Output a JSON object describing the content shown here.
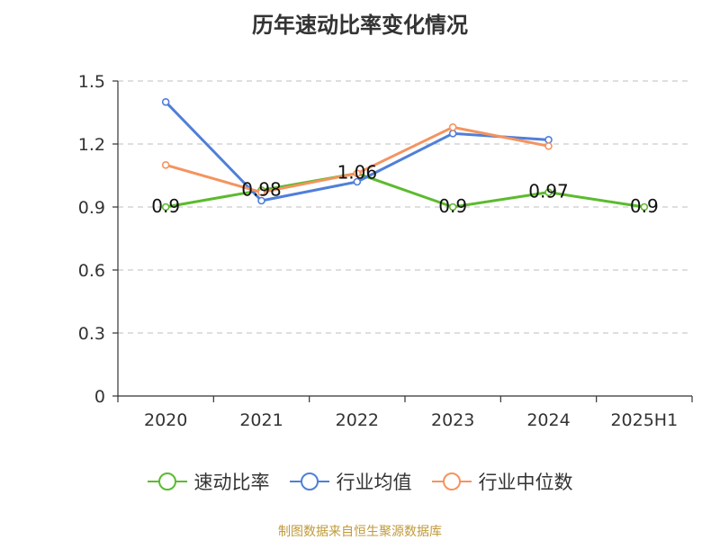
{
  "chart_data": {
    "type": "line",
    "title": "历年速动比率变化情况",
    "categories": [
      "2020",
      "2021",
      "2022",
      "2023",
      "2024",
      "2025H1"
    ],
    "ylim": [
      0,
      1.5
    ],
    "yticks": [
      "0",
      "0.3",
      "0.6",
      "0.9",
      "1.2",
      "1.5"
    ],
    "grid": true,
    "legend_position": "bottom",
    "series": [
      {
        "name": "速动比率",
        "color": "#5bbb2e",
        "values": [
          0.9,
          0.98,
          1.06,
          0.9,
          0.97,
          0.9
        ],
        "labels": [
          "0.9",
          "0.98",
          "1.06",
          "0.9",
          "0.97",
          "0.9"
        ]
      },
      {
        "name": "行业均值",
        "color": "#4f7fd9",
        "values": [
          1.4,
          0.93,
          1.02,
          1.25,
          1.22,
          null
        ]
      },
      {
        "name": "行业中位数",
        "color": "#f5935f",
        "values": [
          1.1,
          0.97,
          1.06,
          1.28,
          1.19,
          null
        ]
      }
    ]
  },
  "source_text": "制图数据来自恒生聚源数据库",
  "source_color": "#c09a3a"
}
